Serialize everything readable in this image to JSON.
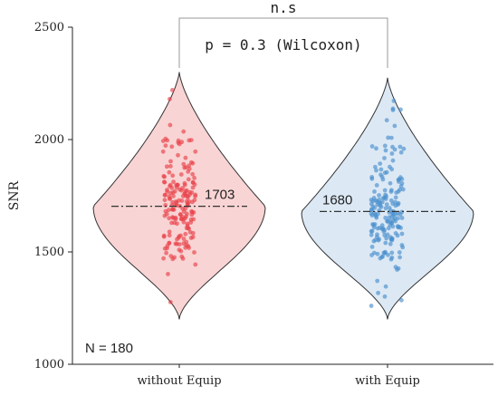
{
  "chart_data": {
    "type": "violin",
    "ylabel": "SNR",
    "ylim": [
      1000,
      2500
    ],
    "yticks": [
      "1000",
      "1500",
      "2000",
      "2500"
    ],
    "categories": [
      "without Equip",
      "with Equip"
    ],
    "series": [
      {
        "category": "without Equip",
        "median": 1703,
        "median_label": "1703",
        "range": [
          1200,
          2300
        ],
        "fill": "#f9d4d4",
        "point_color": "#e8424a"
      },
      {
        "category": "with Equip",
        "median": 1680,
        "median_label": "1680",
        "range": [
          1200,
          2275
        ],
        "fill": "#dce9f5",
        "point_color": "#4a8fcc"
      }
    ],
    "significance_label": "n.s",
    "test_label": "p = 0.3 (Wilcoxon)",
    "n_label": "N = 180",
    "grid": false
  }
}
